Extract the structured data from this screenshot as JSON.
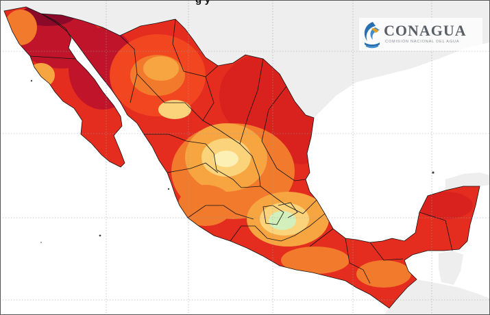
{
  "title_fragment": "g y",
  "logo": {
    "name": "CONAGUA",
    "subtitle": "COMISIÓN NACIONAL DEL AGUA",
    "icon": "conagua-logo-icon"
  },
  "colors": {
    "ocean": "#ffffff",
    "land_outside": "#eeeeee",
    "grid": "#9aa0a6",
    "boundary": "#111111",
    "temperature_scale": [
      "#8b0a2a",
      "#d9221e",
      "#f1461f",
      "#f27a2c",
      "#f6a541",
      "#fad37b",
      "#fcf0b4",
      "#d3efbb"
    ]
  }
}
